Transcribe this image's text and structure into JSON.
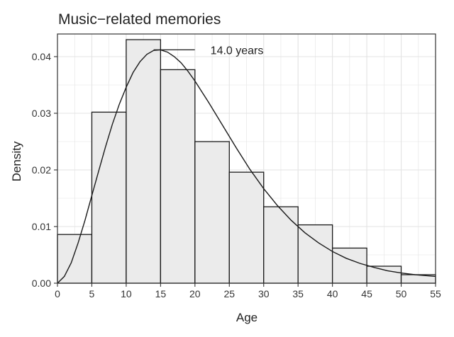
{
  "chart_data": {
    "type": "bar",
    "title": "Music−related memories",
    "xlabel": "Age",
    "ylabel": "Density",
    "xlim": [
      0,
      55
    ],
    "ylim": [
      0,
      0.044
    ],
    "grid": true,
    "legend": "none",
    "bin_edges": [
      0,
      5,
      10,
      15,
      20,
      25,
      30,
      35,
      40,
      45,
      50,
      55
    ],
    "values": [
      0.0086,
      0.0302,
      0.043,
      0.0377,
      0.025,
      0.0196,
      0.0135,
      0.0103,
      0.0062,
      0.003,
      0.0015
    ],
    "x_ticks": [
      0,
      5,
      10,
      15,
      20,
      25,
      30,
      35,
      40,
      45,
      50,
      55
    ],
    "x_tick_labels": [
      "0",
      "5",
      "10",
      "15",
      "20",
      "25",
      "30",
      "35",
      "40",
      "45",
      "50",
      "55"
    ],
    "y_ticks": [
      0,
      0.01,
      0.02,
      0.03,
      0.04
    ],
    "y_tick_labels": [
      "0.00",
      "0.01",
      "0.02",
      "0.03",
      "0.04"
    ],
    "density_curve": {
      "x": [
        0,
        1,
        2,
        3,
        4,
        5,
        6,
        7,
        8,
        9,
        10,
        11,
        12,
        13,
        14,
        15,
        16,
        17,
        18,
        19,
        20,
        22,
        24,
        26,
        28,
        30,
        32,
        34,
        36,
        38,
        40,
        42,
        44,
        46,
        48,
        50,
        52,
        55
      ],
      "y": [
        0.0,
        0.0012,
        0.0036,
        0.0071,
        0.0111,
        0.0155,
        0.0198,
        0.0241,
        0.0281,
        0.0316,
        0.0346,
        0.0372,
        0.0391,
        0.0404,
        0.0411,
        0.0412,
        0.0408,
        0.04,
        0.0389,
        0.0374,
        0.0357,
        0.0319,
        0.0279,
        0.0239,
        0.0201,
        0.0167,
        0.0137,
        0.0111,
        0.0089,
        0.0071,
        0.0056,
        0.0044,
        0.0035,
        0.0028,
        0.0022,
        0.0018,
        0.0015,
        0.0012
      ]
    },
    "annotation": {
      "text": "14.0 years",
      "x": 14.0,
      "y": 0.0412
    },
    "colors": {
      "bar_fill": "#ebebeb",
      "bar_stroke": "#1a1a1a",
      "grid": "#e3e3e3",
      "curve": "#1a1a1a",
      "panel_border": "#333333"
    }
  }
}
